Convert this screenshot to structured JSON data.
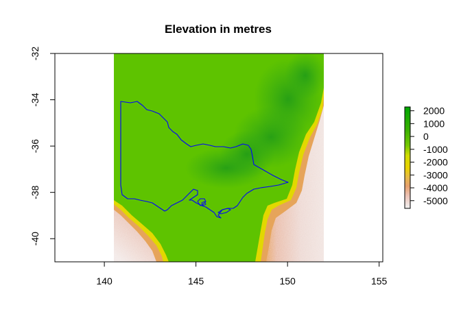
{
  "title": "Elevation in metres",
  "map": {
    "x_ticks": [
      "140",
      "145",
      "150",
      "155"
    ],
    "y_ticks": [
      "-32",
      "-34",
      "-36",
      "-38",
      "-40"
    ],
    "x_range": [
      137.3,
      155.2
    ],
    "y_range": [
      -41.0,
      -32.0
    ]
  },
  "legend": {
    "labels": [
      "2000",
      "1000",
      "0",
      "-1000",
      "-2000",
      "-3000",
      "-4000",
      "-5000"
    ],
    "values": [
      2000,
      1000,
      0,
      -1000,
      -2000,
      -3000,
      -4000,
      -5000
    ],
    "range": [
      -5600,
      2300
    ]
  },
  "colors": {
    "land_low": "#5cc200",
    "land_high": "#1a9e10",
    "coast_yellow": "#e6d700",
    "deep_pink": "#eee0dc",
    "mid_orange": "#e6a35a",
    "boundary": "#0000ff"
  }
}
